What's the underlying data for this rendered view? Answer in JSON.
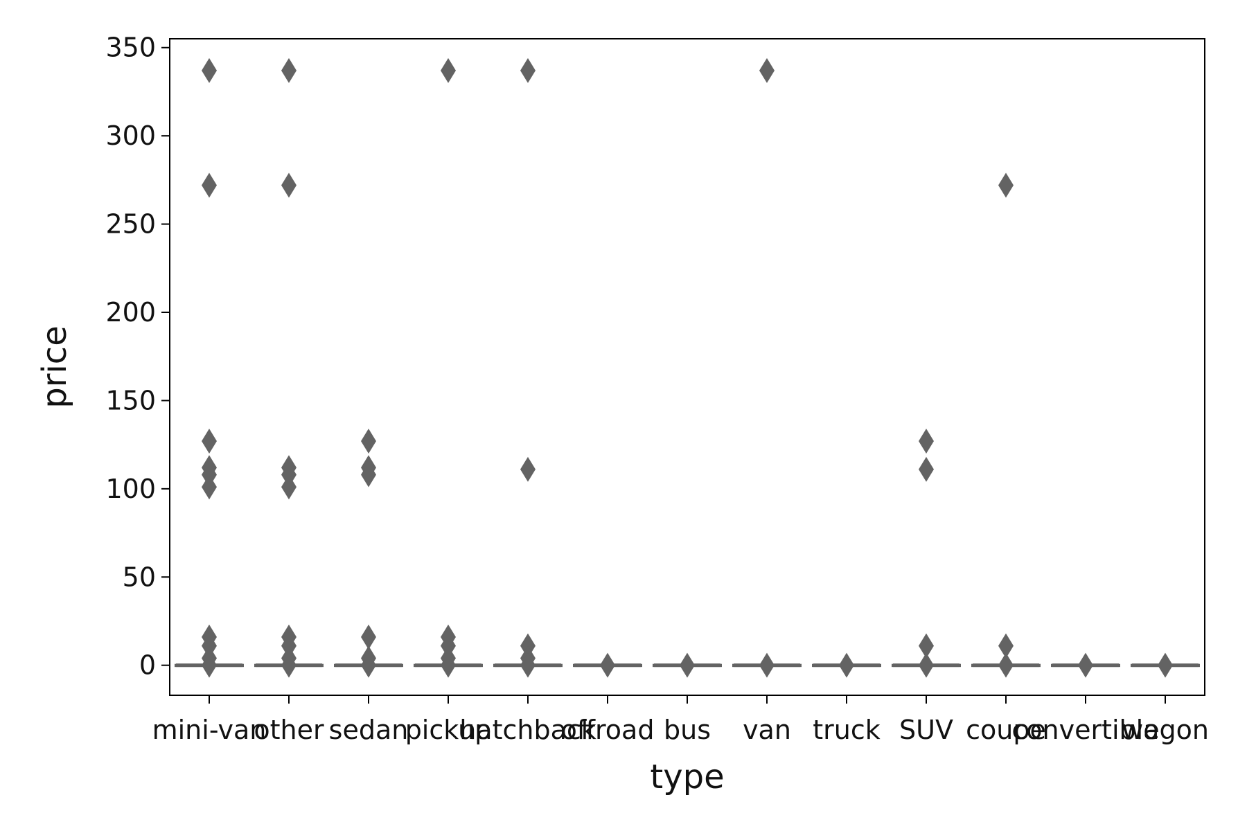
{
  "chart_data": {
    "type": "box",
    "title": "",
    "xlabel": "type",
    "ylabel": "price",
    "ylim": [
      -17,
      355
    ],
    "yticks": [
      "0",
      "50",
      "100",
      "150",
      "200",
      "250",
      "300",
      "350"
    ],
    "categories": [
      "mini-van",
      "other",
      "sedan",
      "pickup",
      "hatchback",
      "offroad",
      "bus",
      "van",
      "truck",
      "SUV",
      "coupe",
      "convertible",
      "wagon"
    ],
    "boxes": [
      {
        "category": "mini-van",
        "median": 0,
        "q1": 0,
        "q3": 0,
        "outliers": [
          337,
          272,
          127,
          112,
          108,
          101,
          16,
          11,
          4,
          0
        ]
      },
      {
        "category": "other",
        "median": 0,
        "q1": 0,
        "q3": 0,
        "outliers": [
          337,
          272,
          112,
          108,
          101,
          16,
          11,
          4,
          0
        ]
      },
      {
        "category": "sedan",
        "median": 0,
        "q1": 0,
        "q3": 0,
        "outliers": [
          127,
          112,
          108,
          16,
          4,
          0
        ]
      },
      {
        "category": "pickup",
        "median": 0,
        "q1": 0,
        "q3": 0,
        "outliers": [
          337,
          16,
          11,
          4,
          0
        ]
      },
      {
        "category": "hatchback",
        "median": 0,
        "q1": 0,
        "q3": 0,
        "outliers": [
          337,
          111,
          11,
          4,
          0
        ]
      },
      {
        "category": "offroad",
        "median": 0,
        "q1": 0,
        "q3": 0,
        "outliers": [
          0
        ]
      },
      {
        "category": "bus",
        "median": 0,
        "q1": 0,
        "q3": 0,
        "outliers": [
          0
        ]
      },
      {
        "category": "van",
        "median": 0,
        "q1": 0,
        "q3": 0,
        "outliers": [
          337,
          0
        ]
      },
      {
        "category": "truck",
        "median": 0,
        "q1": 0,
        "q3": 0,
        "outliers": [
          0
        ]
      },
      {
        "category": "SUV",
        "median": 0,
        "q1": 0,
        "q3": 0,
        "outliers": [
          127,
          111,
          11,
          0
        ]
      },
      {
        "category": "coupe",
        "median": 0,
        "q1": 0,
        "q3": 0,
        "outliers": [
          272,
          11,
          0
        ]
      },
      {
        "category": "convertible",
        "median": 0,
        "q1": 0,
        "q3": 0,
        "outliers": [
          0
        ]
      },
      {
        "category": "wagon",
        "median": 0,
        "q1": 0,
        "q3": 0,
        "outliers": [
          0
        ]
      }
    ],
    "color": "#636363",
    "grid": false,
    "legend": "none"
  }
}
